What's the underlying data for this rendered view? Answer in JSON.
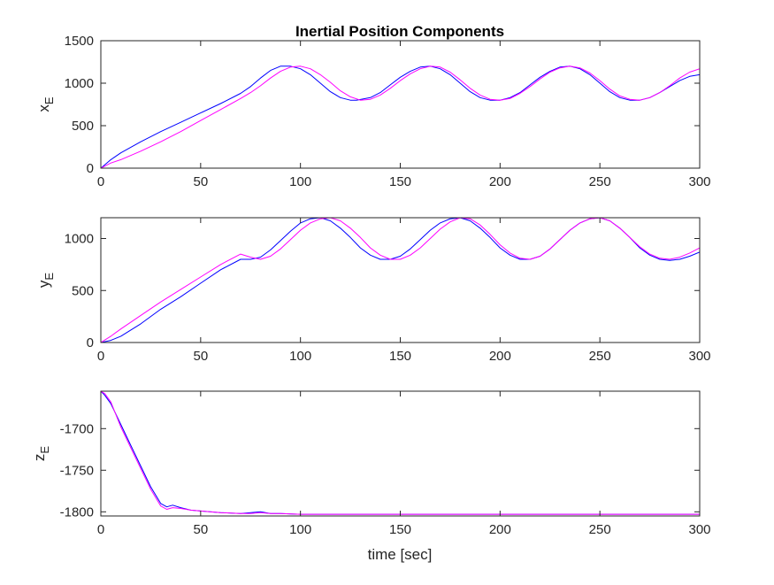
{
  "figure": {
    "title": "Inertial Position Components",
    "xlabel": "time [sec]"
  },
  "colors": {
    "series_a": "#0000ff",
    "series_b": "#ff00ff",
    "axes": "#262626"
  },
  "chart_data": [
    {
      "type": "line",
      "ylabel_main": "x",
      "ylabel_sub": "E",
      "xlim": [
        0,
        300
      ],
      "ylim": [
        0,
        1500
      ],
      "xticks": [
        0,
        50,
        100,
        150,
        200,
        250,
        300
      ],
      "yticks": [
        0,
        500,
        1000,
        1500
      ],
      "grid": false,
      "series": [
        {
          "color": "#0000ff",
          "x": [
            0,
            5,
            10,
            20,
            30,
            40,
            50,
            60,
            70,
            75,
            80,
            85,
            90,
            95,
            100,
            105,
            110,
            115,
            120,
            125,
            128,
            135,
            140,
            145,
            150,
            155,
            160,
            165,
            170,
            175,
            180,
            185,
            190,
            195,
            200,
            205,
            210,
            215,
            220,
            225,
            230,
            235,
            240,
            245,
            250,
            255,
            260,
            265,
            270,
            275,
            280,
            285,
            290,
            295,
            300
          ],
          "y": [
            0,
            100,
            180,
            310,
            430,
            540,
            650,
            760,
            880,
            960,
            1060,
            1150,
            1200,
            1200,
            1170,
            1100,
            1000,
            900,
            830,
            800,
            800,
            830,
            890,
            980,
            1070,
            1140,
            1190,
            1200,
            1170,
            1100,
            1000,
            900,
            830,
            800,
            800,
            830,
            890,
            980,
            1070,
            1140,
            1190,
            1200,
            1170,
            1100,
            1000,
            900,
            830,
            800,
            800,
            830,
            890,
            960,
            1030,
            1080,
            1100
          ]
        },
        {
          "color": "#ff00ff",
          "x": [
            0,
            5,
            10,
            20,
            30,
            40,
            50,
            60,
            70,
            75,
            80,
            85,
            90,
            95,
            100,
            105,
            110,
            115,
            120,
            125,
            130,
            135,
            140,
            145,
            150,
            155,
            160,
            165,
            170,
            175,
            180,
            185,
            190,
            195,
            200,
            205,
            210,
            215,
            220,
            225,
            230,
            235,
            240,
            245,
            250,
            255,
            260,
            265,
            270,
            275,
            280,
            285,
            290,
            295,
            300
          ],
          "y": [
            0,
            60,
            100,
            200,
            310,
            430,
            560,
            690,
            820,
            890,
            970,
            1060,
            1140,
            1190,
            1200,
            1170,
            1100,
            1010,
            910,
            840,
            800,
            810,
            860,
            940,
            1030,
            1110,
            1170,
            1200,
            1190,
            1130,
            1040,
            940,
            860,
            810,
            800,
            820,
            880,
            960,
            1050,
            1130,
            1180,
            1200,
            1180,
            1120,
            1030,
            930,
            850,
            810,
            800,
            830,
            890,
            970,
            1060,
            1130,
            1170
          ]
        }
      ]
    },
    {
      "type": "line",
      "ylabel_main": "y",
      "ylabel_sub": "E",
      "xlim": [
        0,
        300
      ],
      "ylim": [
        0,
        1200
      ],
      "xticks": [
        0,
        50,
        100,
        150,
        200,
        250,
        300
      ],
      "yticks": [
        0,
        500,
        1000
      ],
      "grid": false,
      "series": [
        {
          "color": "#0000ff",
          "x": [
            0,
            5,
            10,
            20,
            30,
            40,
            50,
            60,
            70,
            75,
            80,
            85,
            90,
            95,
            100,
            105,
            110,
            115,
            120,
            125,
            130,
            135,
            140,
            145,
            150,
            155,
            160,
            165,
            170,
            175,
            180,
            185,
            190,
            195,
            200,
            205,
            210,
            215,
            220,
            225,
            230,
            235,
            240,
            245,
            250,
            255,
            260,
            265,
            270,
            275,
            280,
            285,
            290,
            295,
            300
          ],
          "y": [
            0,
            20,
            60,
            180,
            320,
            440,
            570,
            700,
            800,
            800,
            820,
            890,
            980,
            1070,
            1150,
            1190,
            1200,
            1170,
            1100,
            1010,
            910,
            840,
            800,
            800,
            830,
            900,
            990,
            1080,
            1150,
            1190,
            1200,
            1170,
            1100,
            1010,
            910,
            840,
            800,
            800,
            830,
            900,
            990,
            1080,
            1150,
            1190,
            1200,
            1170,
            1100,
            1010,
            910,
            840,
            800,
            790,
            800,
            830,
            870
          ]
        },
        {
          "color": "#ff00ff",
          "x": [
            0,
            5,
            10,
            20,
            30,
            40,
            50,
            60,
            70,
            75,
            80,
            85,
            90,
            95,
            100,
            105,
            110,
            115,
            120,
            125,
            130,
            135,
            140,
            145,
            150,
            155,
            160,
            165,
            170,
            175,
            180,
            185,
            190,
            195,
            200,
            205,
            210,
            215,
            220,
            225,
            230,
            235,
            240,
            245,
            250,
            255,
            260,
            265,
            270,
            275,
            280,
            285,
            290,
            295,
            300
          ],
          "y": [
            0,
            60,
            130,
            260,
            390,
            510,
            630,
            750,
            850,
            820,
            800,
            830,
            900,
            990,
            1080,
            1150,
            1190,
            1200,
            1170,
            1100,
            1010,
            910,
            840,
            800,
            800,
            840,
            910,
            1000,
            1090,
            1160,
            1200,
            1190,
            1130,
            1040,
            940,
            860,
            810,
            800,
            830,
            900,
            990,
            1080,
            1150,
            1190,
            1200,
            1170,
            1100,
            1010,
            920,
            850,
            810,
            800,
            820,
            860,
            910
          ]
        }
      ]
    },
    {
      "type": "line",
      "ylabel_main": "z",
      "ylabel_sub": "E",
      "xlim": [
        0,
        300
      ],
      "ylim": [
        -1805,
        -1655
      ],
      "xticks": [
        0,
        50,
        100,
        150,
        200,
        250,
        300
      ],
      "yticks": [
        -1700,
        -1750,
        -1800
      ],
      "grid": false,
      "series": [
        {
          "color": "#0000ff",
          "x": [
            0,
            2,
            5,
            10,
            15,
            20,
            25,
            30,
            33,
            36,
            40,
            45,
            50,
            60,
            70,
            75,
            80,
            85,
            90,
            100,
            110,
            120,
            150,
            200,
            250,
            300
          ],
          "y": [
            -1655,
            -1660,
            -1670,
            -1695,
            -1720,
            -1745,
            -1770,
            -1790,
            -1794,
            -1792,
            -1795,
            -1798,
            -1799,
            -1801,
            -1802,
            -1801,
            -1800,
            -1802,
            -1802,
            -1803,
            -1803,
            -1803,
            -1803,
            -1803,
            -1803,
            -1803
          ]
        },
        {
          "color": "#ff00ff",
          "x": [
            0,
            2,
            5,
            10,
            15,
            20,
            25,
            30,
            33,
            36,
            40,
            45,
            50,
            60,
            70,
            75,
            80,
            85,
            90,
            100,
            110,
            120,
            150,
            200,
            250,
            300
          ],
          "y": [
            -1655,
            -1658,
            -1668,
            -1698,
            -1723,
            -1748,
            -1773,
            -1793,
            -1797,
            -1795,
            -1796,
            -1798,
            -1799,
            -1801,
            -1802,
            -1802,
            -1801,
            -1802,
            -1802,
            -1803,
            -1803,
            -1803,
            -1803,
            -1803,
            -1803,
            -1803
          ]
        }
      ]
    }
  ]
}
